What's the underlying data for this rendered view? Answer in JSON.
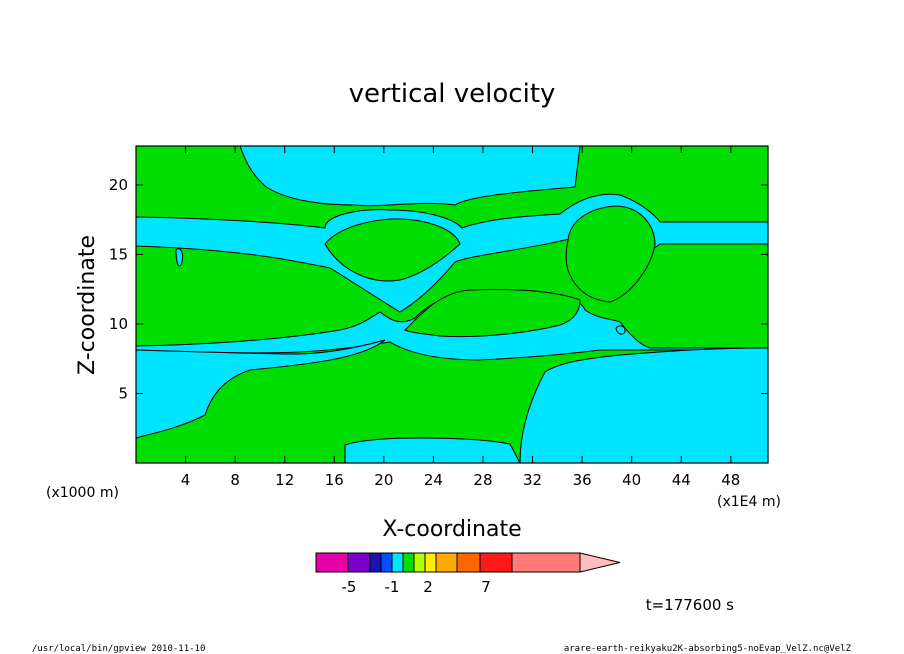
{
  "chart_data": {
    "type": "heatmap",
    "title": "vertical velocity",
    "xlabel": "X-coordinate",
    "ylabel": "Z-coordinate",
    "x_unit": "(x1E4 m)",
    "y_unit": "(x1000 m)",
    "xlim": [
      0,
      51
    ],
    "ylim": [
      0,
      22.8
    ],
    "x_ticks": [
      4,
      8,
      12,
      16,
      20,
      24,
      28,
      32,
      36,
      40,
      44,
      48
    ],
    "y_ticks": [
      5,
      10,
      15,
      20
    ],
    "colors": {
      "positive_region": "#00dd00",
      "negative_region": "#00e5ff"
    },
    "colorbar": {
      "colors": [
        "#e600a8",
        "#7a00c8",
        "#1a14b4",
        "#0050ff",
        "#00e5ff",
        "#00dd00",
        "#b4ff00",
        "#ffee00",
        "#ffaa00",
        "#ff6600",
        "#ff1a1a",
        "#ff7a78",
        "#ffbdbd"
      ],
      "labels": [
        "-5",
        "-1",
        "2",
        "7"
      ]
    },
    "time_label": "t=177600 s",
    "footer_left": "/usr/local/bin/gpview  2010-11-10",
    "footer_right": "arare-earth-reikyaku2K-absorbing5-noEvap_VelZ.nc@VelZ"
  }
}
